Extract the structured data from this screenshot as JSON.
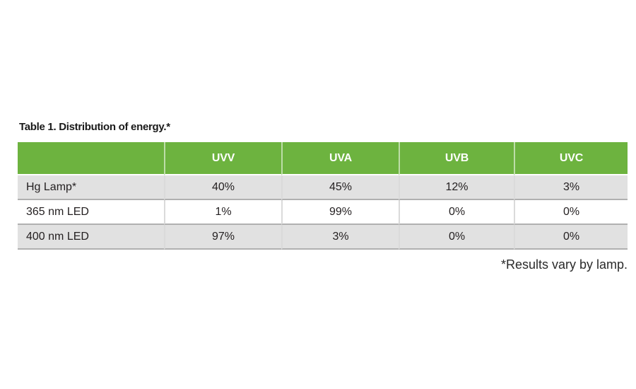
{
  "title": "Table 1. Distribution of energy.*",
  "footnote": "*Results vary by lamp.",
  "table": {
    "headers": [
      "",
      "UVV",
      "UVA",
      "UVB",
      "UVC"
    ],
    "rows": [
      {
        "label": "Hg Lamp*",
        "values": [
          "40%",
          "45%",
          "12%",
          "3%"
        ]
      },
      {
        "label": "365 nm LED",
        "values": [
          "1%",
          "99%",
          "0%",
          "0%"
        ]
      },
      {
        "label": "400 nm LED",
        "values": [
          "97%",
          "3%",
          "0%",
          "0%"
        ]
      }
    ]
  },
  "colors": {
    "header_green": "#6db33f",
    "row_alt_gray": "#e1e1e1",
    "row_separator_gray": "#b0b0b0",
    "column_separator_gray": "#dadada",
    "header_text": "#ffffff",
    "body_text": "#231f20"
  },
  "chart_data": {
    "type": "table",
    "title": "Table 1. Distribution of energy.*",
    "columns": [
      "",
      "UVV",
      "UVA",
      "UVB",
      "UVC"
    ],
    "rows": [
      [
        "Hg Lamp*",
        "40%",
        "45%",
        "12%",
        "3%"
      ],
      [
        "365 nm LED",
        "1%",
        "99%",
        "0%",
        "0%"
      ],
      [
        "400 nm LED",
        "97%",
        "3%",
        "0%",
        "0%"
      ]
    ],
    "units": "percent of energy output",
    "footnote": "*Results vary by lamp.",
    "layout": {
      "header_fill": "#6db33f",
      "alt_row_fill": "#e1e1e1",
      "grid": true
    }
  }
}
